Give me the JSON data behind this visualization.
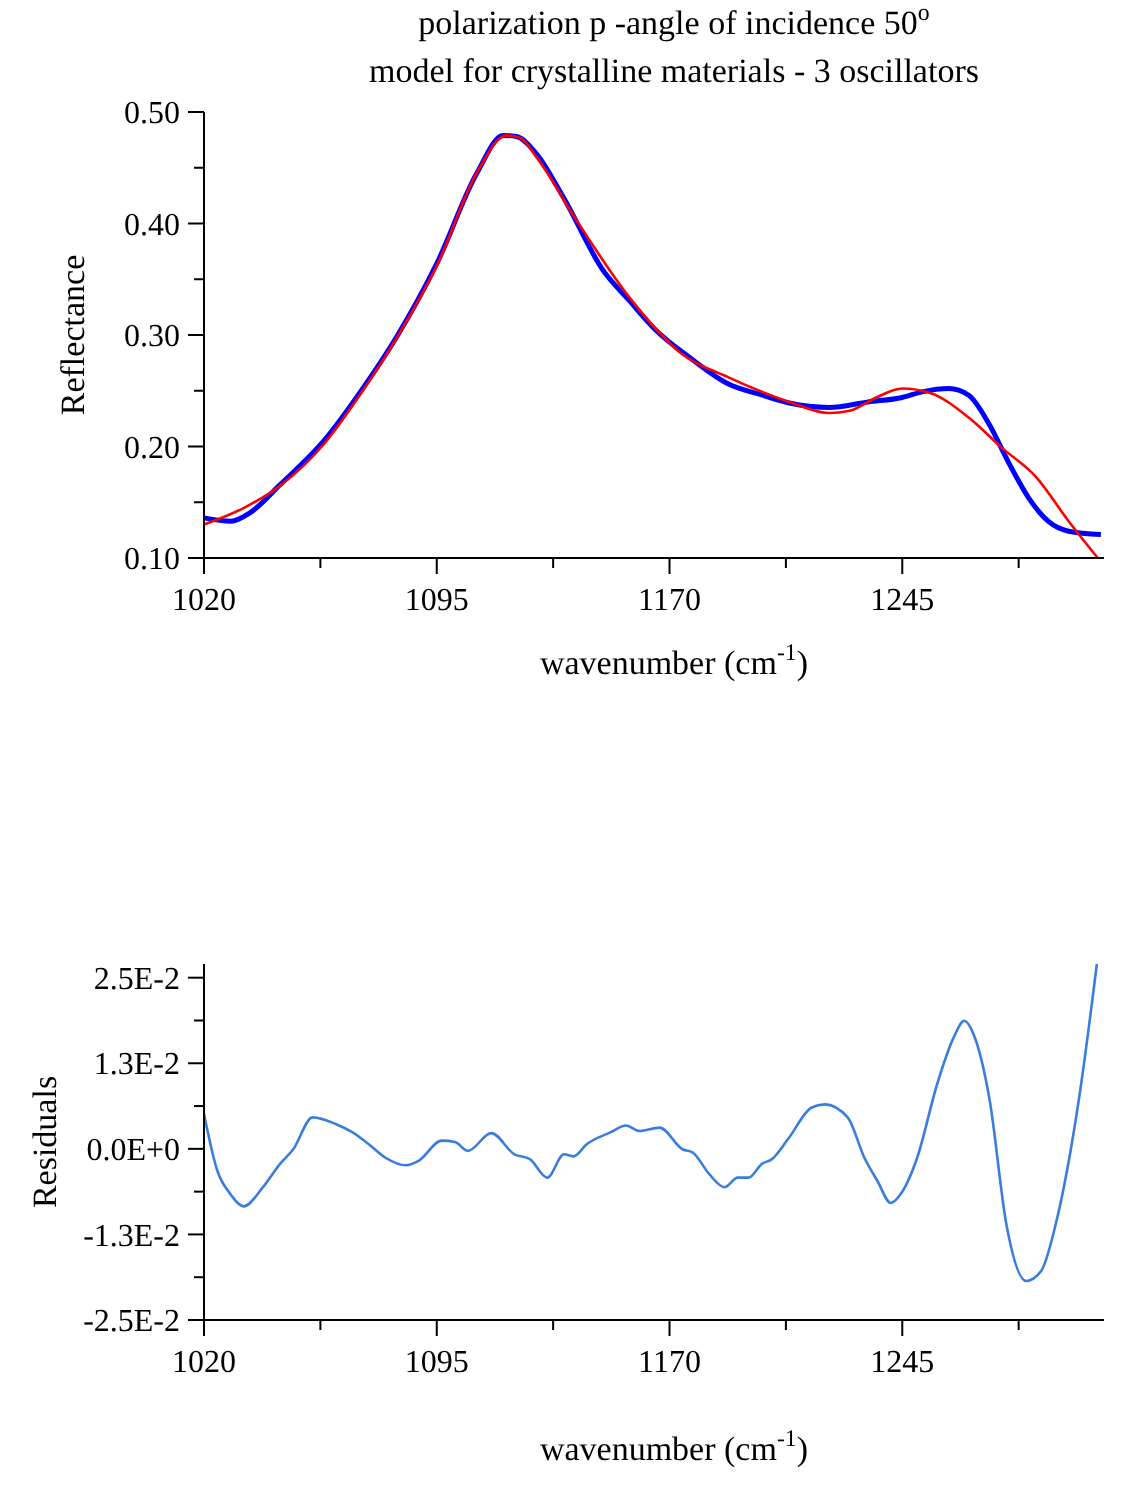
{
  "chart_data": [
    {
      "type": "line",
      "title": "polarization p -angle of incidence 50$^{o}$",
      "subtitle": "model for crystalline materials - 3 oscillators",
      "xlabel": "wavenumber (cm$^{-1}$)",
      "ylabel": "Reflectance",
      "xlim": [
        1020,
        1310
      ],
      "ylim": [
        0.1,
        0.5
      ],
      "xticks": [
        1020,
        {
          "value": 1057.5,
          "label": null
        },
        1095,
        {
          "value": 1132.5,
          "label": null
        },
        1170,
        {
          "value": 1207.5,
          "label": null
        },
        1245,
        {
          "value": 1282.5,
          "label": null
        }
      ],
      "yticks": [
        {
          "value": 0.1,
          "label": "0.10"
        },
        {
          "value": 0.15,
          "label": null
        },
        {
          "value": 0.2,
          "label": "0.20"
        },
        {
          "value": 0.25,
          "label": null
        },
        {
          "value": 0.3,
          "label": "0.30"
        },
        {
          "value": 0.35,
          "label": null
        },
        {
          "value": 0.4,
          "label": "0.40"
        },
        {
          "value": 0.45,
          "label": null
        },
        {
          "value": 0.5,
          "label": "0.50"
        }
      ],
      "grid": false,
      "marker": "none",
      "series": [
        {
          "color": "#0000ff",
          "x": [
            1020,
            1028.6,
            1035,
            1044.6,
            1058.6,
            1071.4,
            1082,
            1095,
            1107.9,
            1116.4,
            1120.7,
            1127,
            1135.7,
            1148.6,
            1157,
            1165.7,
            1176.4,
            1189,
            1200,
            1208.6,
            1221.4,
            1234,
            1245,
            1251.4,
            1260,
            1266.4,
            1273,
            1279,
            1285.7,
            1292,
            1298.6,
            1309
          ],
          "values": [
            0.136,
            0.133,
            0.141,
            0.166,
            0.205,
            0.253,
            0.298,
            0.364,
            0.445,
            0.479,
            0.478,
            0.463,
            0.424,
            0.358,
            0.331,
            0.304,
            0.28,
            0.256,
            0.246,
            0.239,
            0.235,
            0.24,
            0.244,
            0.249,
            0.252,
            0.246,
            0.22,
            0.187,
            0.154,
            0.133,
            0.124,
            0.121
          ]
        },
        {
          "color": "#ff0000",
          "x": [
            1020,
            1032.9,
            1044.6,
            1058.6,
            1071.4,
            1082,
            1095,
            1108,
            1117.5,
            1121.8,
            1127,
            1140,
            1157,
            1174,
            1189,
            1208.6,
            1221.4,
            1228,
            1236.6,
            1245,
            1254,
            1266.4,
            1277,
            1288,
            1298.6,
            1308
          ],
          "values": [
            0.13,
            0.145,
            0.165,
            0.202,
            0.251,
            0.297,
            0.362,
            0.446,
            0.479,
            0.477,
            0.46,
            0.403,
            0.334,
            0.283,
            0.262,
            0.24,
            0.23,
            0.232,
            0.244,
            0.252,
            0.248,
            0.226,
            0.199,
            0.173,
            0.133,
            0.1
          ]
        }
      ]
    },
    {
      "type": "line",
      "xlabel": "wavenumber (cm$^{-1}$)",
      "ylabel": "Residuals",
      "xlim": [
        1020,
        1310
      ],
      "ylim": [
        -0.025,
        0.027
      ],
      "xticks": [
        1020,
        {
          "value": 1057.5,
          "label": null
        },
        1095,
        {
          "value": 1132.5,
          "label": null
        },
        1170,
        {
          "value": 1207.5,
          "label": null
        },
        1245,
        {
          "value": 1282.5,
          "label": null
        }
      ],
      "yticks": [
        {
          "value": -0.025,
          "label": "-2.5E-2"
        },
        {
          "value": -0.01875,
          "label": null
        },
        {
          "value": -0.0125,
          "label": "-1.3E-2"
        },
        {
          "value": -0.00625,
          "label": null
        },
        {
          "value": 0,
          "label": "0.0E+0"
        },
        {
          "value": 0.00625,
          "label": null
        },
        {
          "value": 0.0125,
          "label": "1.3E-2"
        },
        {
          "value": 0.01875,
          "label": null
        },
        {
          "value": 0.025,
          "label": "2.5E-2"
        }
      ],
      "grid": false,
      "marker": "none",
      "series": [
        {
          "color": "#3b7ddd",
          "x": [
            1020,
            1024.3,
            1028.5,
            1032.8,
            1039,
            1044.5,
            1048.7,
            1055,
            1062.6,
            1067.9,
            1073,
            1078.5,
            1085,
            1089,
            1096.6,
            1100.9,
            1105,
            1112.6,
            1120,
            1125,
            1130.6,
            1136,
            1139,
            1143.4,
            1150.9,
            1156,
            1160.4,
            1166.8,
            1174.3,
            1177.4,
            1182.8,
            1187.7,
            1192,
            1195.5,
            1199.8,
            1203,
            1208.3,
            1215.7,
            1220,
            1227.4,
            1232.8,
            1237,
            1241.3,
            1244.5,
            1249.8,
            1256.2,
            1261.5,
            1265,
            1268,
            1273.2,
            1278.5,
            1284.9,
            1289.8,
            1294.5,
            1302,
            1307.7
          ],
          "values": [
            0.0051,
            -0.0032,
            -0.0066,
            -0.0084,
            -0.0056,
            -0.0022,
            -0.0001,
            0.0046,
            0.0036,
            0.0024,
            0.0007,
            -0.0013,
            -0.0024,
            -0.0018,
            0.0012,
            0.001,
            -0.0003,
            0.0023,
            -0.0008,
            -0.0015,
            -0.0042,
            -0.0008,
            -0.0011,
            0.0007,
            0.0024,
            0.0034,
            0.0026,
            0.0031,
            -0.0001,
            -0.0005,
            -0.0037,
            -0.0056,
            -0.0042,
            -0.0042,
            -0.0022,
            -0.0015,
            0.0015,
            0.006,
            0.0065,
            0.0046,
            -0.0013,
            -0.0047,
            -0.0079,
            -0.0066,
            -0.0013,
            0.0094,
            0.0162,
            0.0187,
            0.0167,
            0.007,
            -0.0109,
            -0.0193,
            -0.0178,
            -0.0109,
            0.0075,
            0.027
          ]
        }
      ]
    }
  ]
}
